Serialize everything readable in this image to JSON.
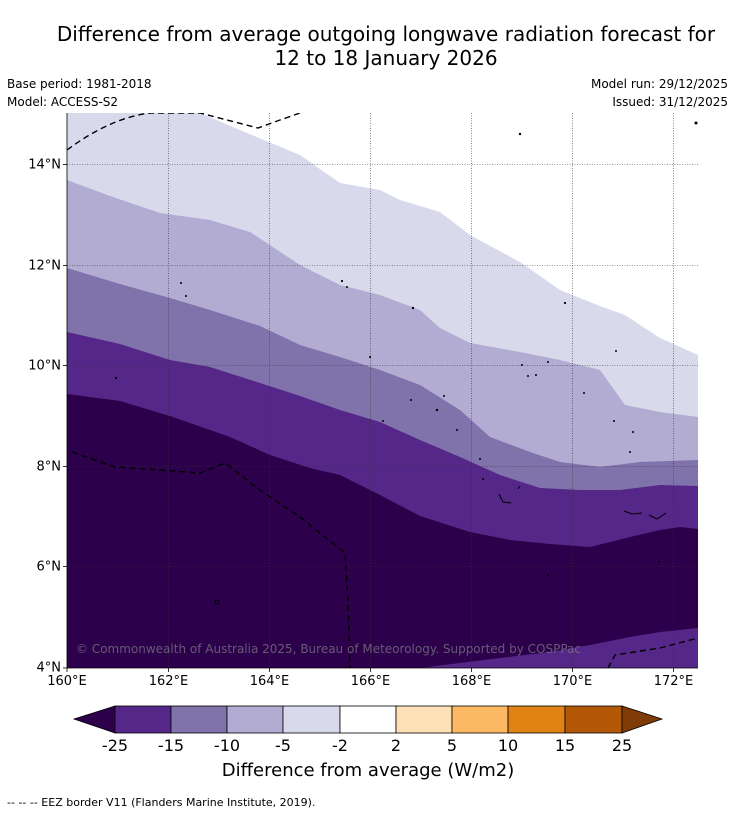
{
  "title": {
    "line1": "Difference from average outgoing longwave radiation forecast for",
    "line2": "12 to 18 January 2026"
  },
  "meta": {
    "base_period": "Base period: 1981-2018",
    "model": "Model: ACCESS-S2",
    "model_run": "Model run: 29/12/2025",
    "issued": "Issued: 31/12/2025"
  },
  "map": {
    "lon_range": [
      160,
      172.5
    ],
    "lat_range": [
      4,
      15
    ],
    "x_ticks": [
      "160°E",
      "162°E",
      "164°E",
      "166°E",
      "168°E",
      "170°E",
      "172°E"
    ],
    "y_ticks": [
      "4°N",
      "6°N",
      "8°N",
      "10°N",
      "12°N",
      "14°N"
    ],
    "watermark": "© Commonwealth of Australia 2025, Bureau of Meteorology. Supported by COSPPac",
    "bands": [
      {
        "range": "< -25",
        "color": "#2d004b"
      },
      {
        "range": "-25 to -15",
        "color": "#542788"
      },
      {
        "range": "-15 to -10",
        "color": "#8073ac"
      },
      {
        "range": "-10 to -5",
        "color": "#b2abd2"
      },
      {
        "range": "-5 to -2",
        "color": "#d8daeb"
      },
      {
        "range": "-2 to 2",
        "color": "#ffffff"
      }
    ]
  },
  "colorbar": {
    "title": "Difference from average (W/m2)",
    "labels": [
      "-25",
      "-15",
      "-10",
      "-5",
      "-2",
      "2",
      "5",
      "10",
      "15",
      "25"
    ],
    "colors": [
      "#2d004b",
      "#542788",
      "#8073ac",
      "#b2abd2",
      "#d8daeb",
      "#ffffff",
      "#fee0b6",
      "#fdb863",
      "#e08214",
      "#b35806",
      "#7f3b08"
    ]
  },
  "footer": "--  --  -- EEZ border V11 (Flanders Marine Institute, 2019)."
}
